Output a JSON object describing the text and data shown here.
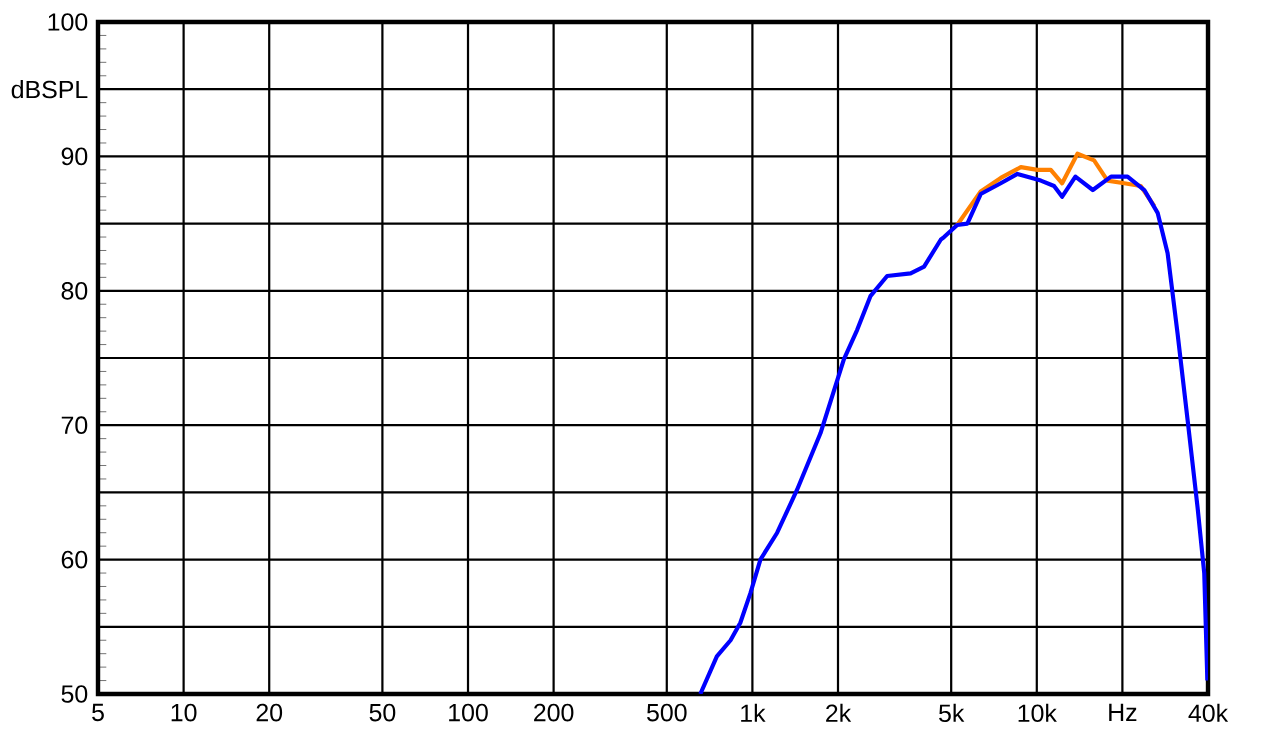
{
  "chart_data": {
    "type": "line",
    "log": "x",
    "grid": true,
    "xlim": [
      5,
      40000
    ],
    "ylim": [
      50,
      100
    ],
    "xticks": [
      5,
      10,
      20,
      50,
      100,
      200,
      500,
      {
        "value": 1000,
        "label": "1k"
      },
      {
        "value": 2000,
        "label": "2k"
      },
      {
        "value": 5000,
        "label": "5k"
      },
      {
        "value": 10000,
        "label": "10k"
      },
      {
        "value": 20000,
        "label": "Hz"
      },
      {
        "value": 40000,
        "label": "40k"
      }
    ],
    "yticks": [
      50,
      {
        "value": 55,
        "label": null
      },
      60,
      {
        "value": 65,
        "label": null
      },
      70,
      {
        "value": 75,
        "label": null
      },
      80,
      {
        "value": 85,
        "label": null
      },
      90,
      {
        "value": 95,
        "label": "dBSPL"
      },
      100
    ],
    "series": [
      {
        "color": "#ff8000",
        "x": [
          5250,
          6350,
          7470,
          8790,
          10050,
          11200,
          12280,
          13900,
          15900,
          17730,
          20300,
          23200,
          25900
        ],
        "values": [
          84.9,
          87.4,
          88.4,
          89.2,
          89.0,
          89.0,
          88.0,
          90.2,
          89.7,
          88.2,
          88.0,
          87.8,
          86.3
        ]
      },
      {
        "color": "#0000ff",
        "x": [
          656,
          750,
          838,
          907,
          984,
          1067,
          1222,
          1436,
          1735,
          2097,
          2336,
          2600,
          2977,
          3600,
          4015,
          4594,
          4720,
          5250,
          5700,
          6350,
          7470,
          8550,
          10330,
          11500,
          12280,
          13670,
          15740,
          18240,
          20850,
          23880,
          26600,
          28840,
          31270,
          33900,
          36750,
          38800,
          39800
        ],
        "values": [
          50.0,
          52.8,
          54.0,
          55.3,
          57.5,
          60.0,
          62.0,
          65.2,
          69.4,
          74.9,
          77.1,
          79.6,
          81.1,
          81.3,
          81.8,
          83.8,
          84.0,
          84.9,
          85.0,
          87.2,
          88.0,
          88.7,
          88.2,
          87.8,
          87.0,
          88.5,
          87.5,
          88.5,
          88.5,
          87.5,
          85.8,
          82.8,
          76.8,
          70.4,
          63.9,
          59.0,
          51.0
        ]
      }
    ]
  }
}
